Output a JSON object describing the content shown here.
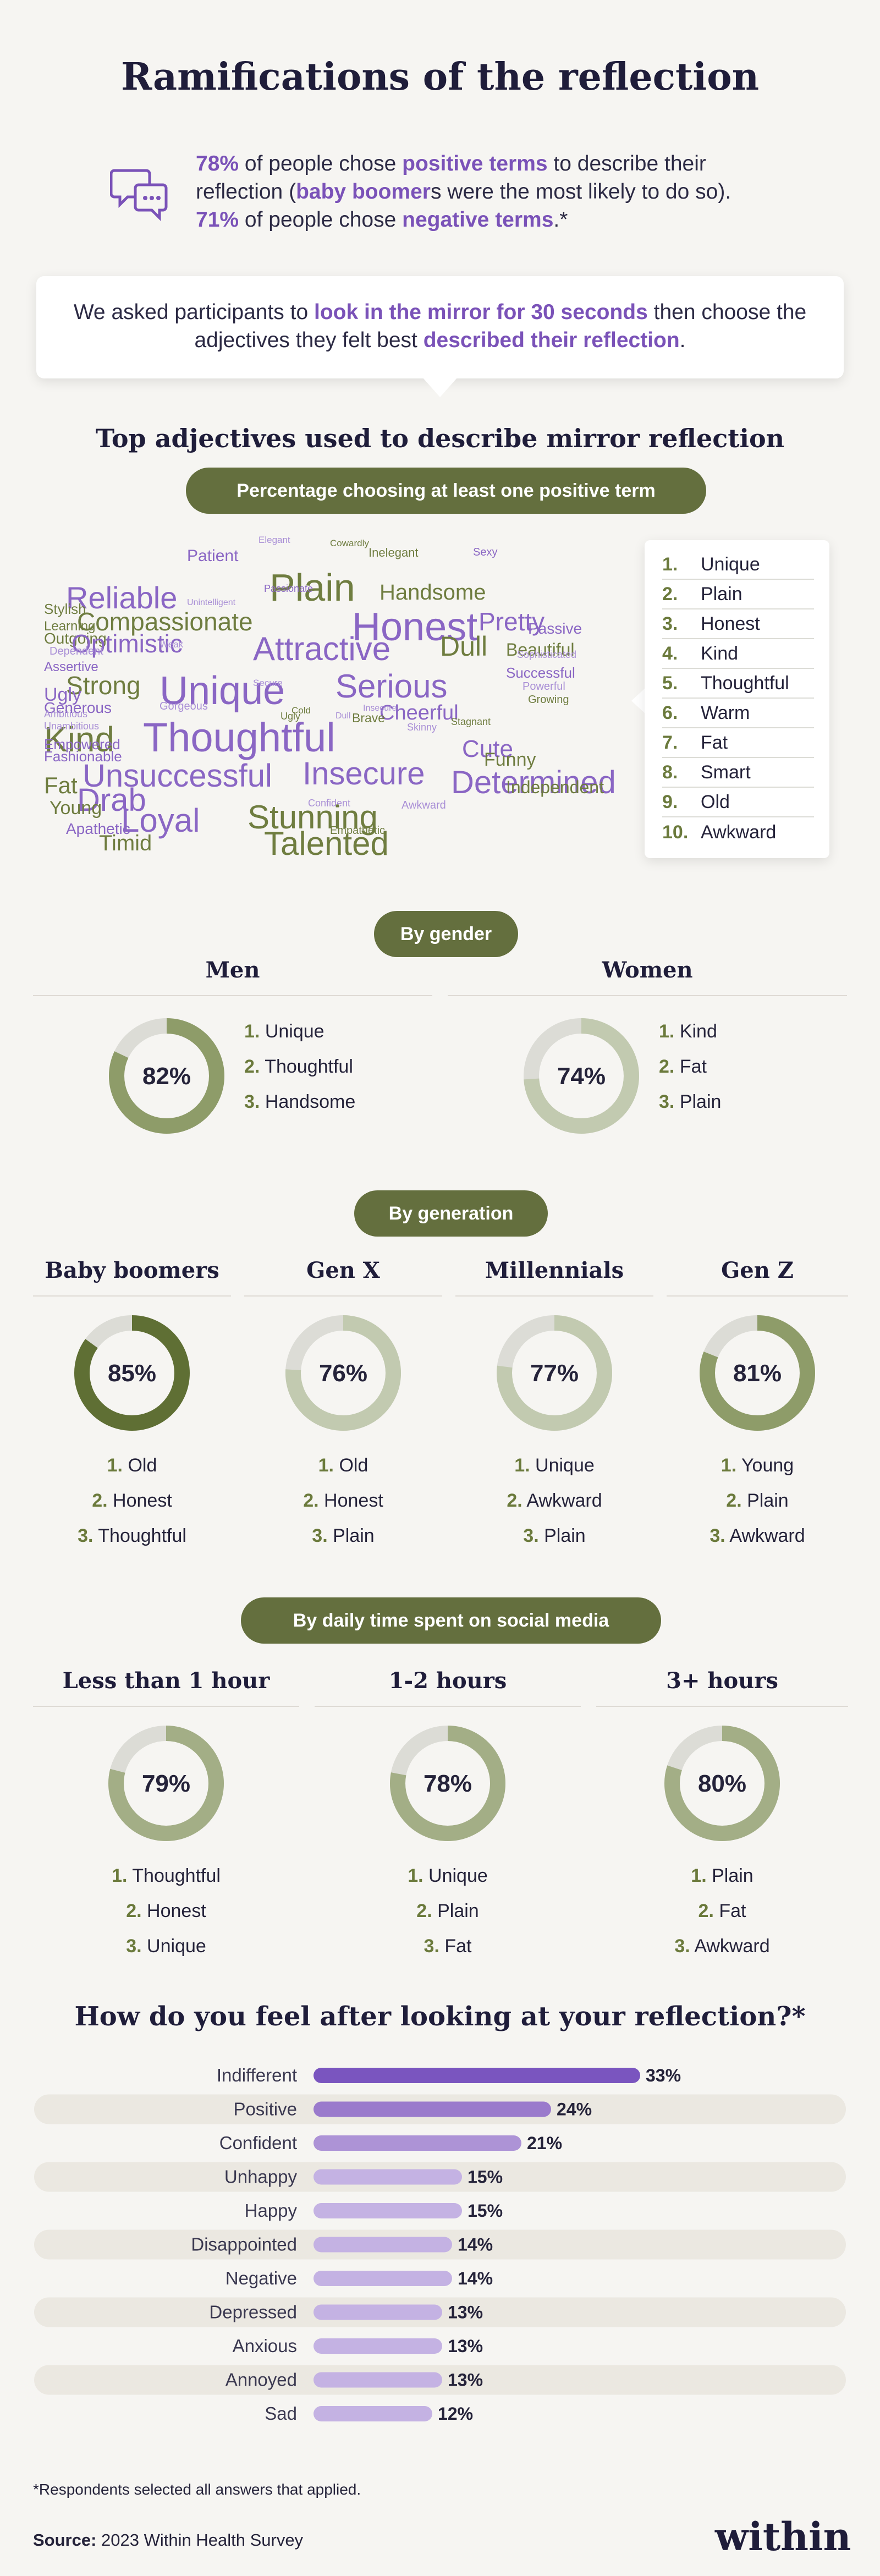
{
  "title": "Ramifications of the reflection",
  "intro": {
    "p1_stat": "78%",
    "p1_a": " of people chose ",
    "p1_hl": "positive terms",
    "p1_b": " to describe their reflection (",
    "p1_hl2": "baby boomer",
    "p1_c": "s were the most likely to do so). ",
    "p2_stat": "71%",
    "p2_a": " of people chose ",
    "p2_hl": "negative terms",
    "p2_b": ".*",
    "icon": "chat-bubbles-icon"
  },
  "mirror": {
    "a": "We asked participants to ",
    "hl1": "look in the mirror for 30 seconds",
    "b": " then choose the adjectives they felt best ",
    "hl2": "described their reflection",
    "c": "."
  },
  "adjectives": {
    "heading": "Top adjectives used to describe mirror reflection",
    "pill": "Percentage choosing at least one positive term",
    "top10": [
      {
        "num": "1.",
        "word": "Unique"
      },
      {
        "num": "2.",
        "word": "Plain"
      },
      {
        "num": "3.",
        "word": "Honest"
      },
      {
        "num": "4.",
        "word": "Kind"
      },
      {
        "num": "5.",
        "word": "Thoughtful"
      },
      {
        "num": "6.",
        "word": "Warm"
      },
      {
        "num": "7.",
        "word": "Fat"
      },
      {
        "num": "8.",
        "word": "Smart"
      },
      {
        "num": "9.",
        "word": "Old"
      },
      {
        "num": "10.",
        "word": "Awkward"
      }
    ],
    "cloud_words": [
      "Patient",
      "Elegant",
      "Cowardly",
      "Inelegant",
      "Sexy",
      "Plain",
      "Reliable",
      "Passionate",
      "Handsome",
      "Honest",
      "Stylish",
      "Compassionate",
      "Unintelligent",
      "Pretty",
      "Learning",
      "Outgoing",
      "Optimistic",
      "Attractive",
      "Dull",
      "Passive",
      "Dependent",
      "Weak",
      "Beautiful",
      "Sophisticated",
      "Assertive",
      "Strong",
      "Unique",
      "Serious",
      "Successful",
      "Ugly",
      "Secure",
      "Powerful",
      "Generous",
      "Kind",
      "Thoughtful",
      "Cheerful",
      "Growing",
      "Ambitious",
      "Gorgeous",
      "Cold",
      "Insecure",
      "Brave",
      "Stagnant",
      "Unambitious",
      "Old",
      "Cute",
      "Empowered",
      "Smart",
      "Unattractive",
      "Skinny",
      "Funny",
      "Fashionable",
      "Dull",
      "Ugly",
      "Unsuccessful",
      "Insecure",
      "Determined",
      "Fat",
      "Drab",
      "Independent",
      "Young",
      "Loyal",
      "Confident",
      "Stunning",
      "Awkward",
      "Apathetic",
      "Timid",
      "Empathetic",
      "Talented",
      "Warm"
    ]
  },
  "gender": {
    "pill": "By gender",
    "groups": [
      {
        "title": "Men",
        "pct": "82%",
        "items": [
          {
            "n": "1.",
            "w": "Unique"
          },
          {
            "n": "2.",
            "w": "Thoughtful"
          },
          {
            "n": "3.",
            "w": "Handsome"
          }
        ]
      },
      {
        "title": "Women",
        "pct": "74%",
        "items": [
          {
            "n": "1.",
            "w": "Kind"
          },
          {
            "n": "2.",
            "w": "Fat"
          },
          {
            "n": "3.",
            "w": "Plain"
          }
        ]
      }
    ]
  },
  "generation": {
    "pill": "By generation",
    "groups": [
      {
        "title": "Baby boomers",
        "pct": "85%",
        "items": [
          {
            "n": "1.",
            "w": "Old"
          },
          {
            "n": "2.",
            "w": "Honest"
          },
          {
            "n": "3.",
            "w": "Thoughtful"
          }
        ]
      },
      {
        "title": "Gen X",
        "pct": "76%",
        "items": [
          {
            "n": "1.",
            "w": "Old"
          },
          {
            "n": "2.",
            "w": "Honest"
          },
          {
            "n": "3.",
            "w": "Plain"
          }
        ]
      },
      {
        "title": "Millennials",
        "pct": "77%",
        "items": [
          {
            "n": "1.",
            "w": "Unique"
          },
          {
            "n": "2.",
            "w": "Awkward"
          },
          {
            "n": "3.",
            "w": "Plain"
          }
        ]
      },
      {
        "title": "Gen Z",
        "pct": "81%",
        "items": [
          {
            "n": "1.",
            "w": "Young"
          },
          {
            "n": "2.",
            "w": "Plain"
          },
          {
            "n": "3.",
            "w": "Awkward"
          }
        ]
      }
    ]
  },
  "social": {
    "pill": "By daily time spent on social media",
    "groups": [
      {
        "title": "Less than 1 hour",
        "pct": "79%",
        "items": [
          {
            "n": "1.",
            "w": "Thoughtful"
          },
          {
            "n": "2.",
            "w": "Honest"
          },
          {
            "n": "3.",
            "w": "Unique"
          }
        ]
      },
      {
        "title": "1-2 hours",
        "pct": "78%",
        "items": [
          {
            "n": "1.",
            "w": "Unique"
          },
          {
            "n": "2.",
            "w": "Plain"
          },
          {
            "n": "3.",
            "w": "Fat"
          }
        ]
      },
      {
        "title": "3+ hours",
        "pct": "80%",
        "items": [
          {
            "n": "1.",
            "w": "Plain"
          },
          {
            "n": "2.",
            "w": "Fat"
          },
          {
            "n": "3.",
            "w": "Awkward"
          }
        ]
      }
    ]
  },
  "feel": {
    "title": "How do you feel after looking at your reflection?*"
  },
  "chart_data": [
    {
      "type": "pie",
      "title": "Percentage choosing at least one positive term",
      "groups": [
        {
          "category": "By gender",
          "labels": [
            "Men",
            "Women"
          ],
          "values": [
            82,
            74
          ]
        },
        {
          "category": "By generation",
          "labels": [
            "Baby boomers",
            "Gen X",
            "Millennials",
            "Gen Z"
          ],
          "values": [
            85,
            76,
            77,
            81
          ]
        },
        {
          "category": "By daily time spent on social media",
          "labels": [
            "Less than 1 hour",
            "1-2 hours",
            "3+ hours"
          ],
          "values": [
            79,
            78,
            80
          ]
        }
      ],
      "colors": {
        "track": "#dcdcd6",
        "boomer": "#5f6f34",
        "strong": "#8e9c69",
        "mid": "#a3ae86",
        "light": "#c2cab0"
      }
    },
    {
      "type": "bar",
      "title": "How do you feel after looking at your reflection?*",
      "categories": [
        "Indifferent",
        "Positive",
        "Confident",
        "Unhappy",
        "Happy",
        "Disappointed",
        "Negative",
        "Depressed",
        "Anxious",
        "Annoyed",
        "Sad"
      ],
      "values": [
        33,
        24,
        21,
        15,
        15,
        14,
        14,
        13,
        13,
        13,
        12
      ],
      "value_labels": [
        "33%",
        "24%",
        "21%",
        "15%",
        "15%",
        "14%",
        "14%",
        "13%",
        "13%",
        "13%",
        "12%"
      ],
      "xlim": [
        0,
        35
      ],
      "colors": [
        "#7a55bf",
        "#9a7acc",
        "#ad93d6",
        "#c4b2e3",
        "#c4b2e3",
        "#c4b2e3",
        "#c4b2e3",
        "#c4b2e3",
        "#c4b2e3",
        "#c4b2e3",
        "#c4b2e3"
      ]
    }
  ],
  "footnote": "*Respondents selected all answers that applied.",
  "source": {
    "label": "Source:",
    "text": " 2023 Within Health Survey"
  },
  "brand": "within",
  "colors": {
    "accent_purple": "#7a52b8",
    "olive": "#646f3e",
    "navy": "#1f1d3a",
    "background": "#f6f5f2"
  }
}
